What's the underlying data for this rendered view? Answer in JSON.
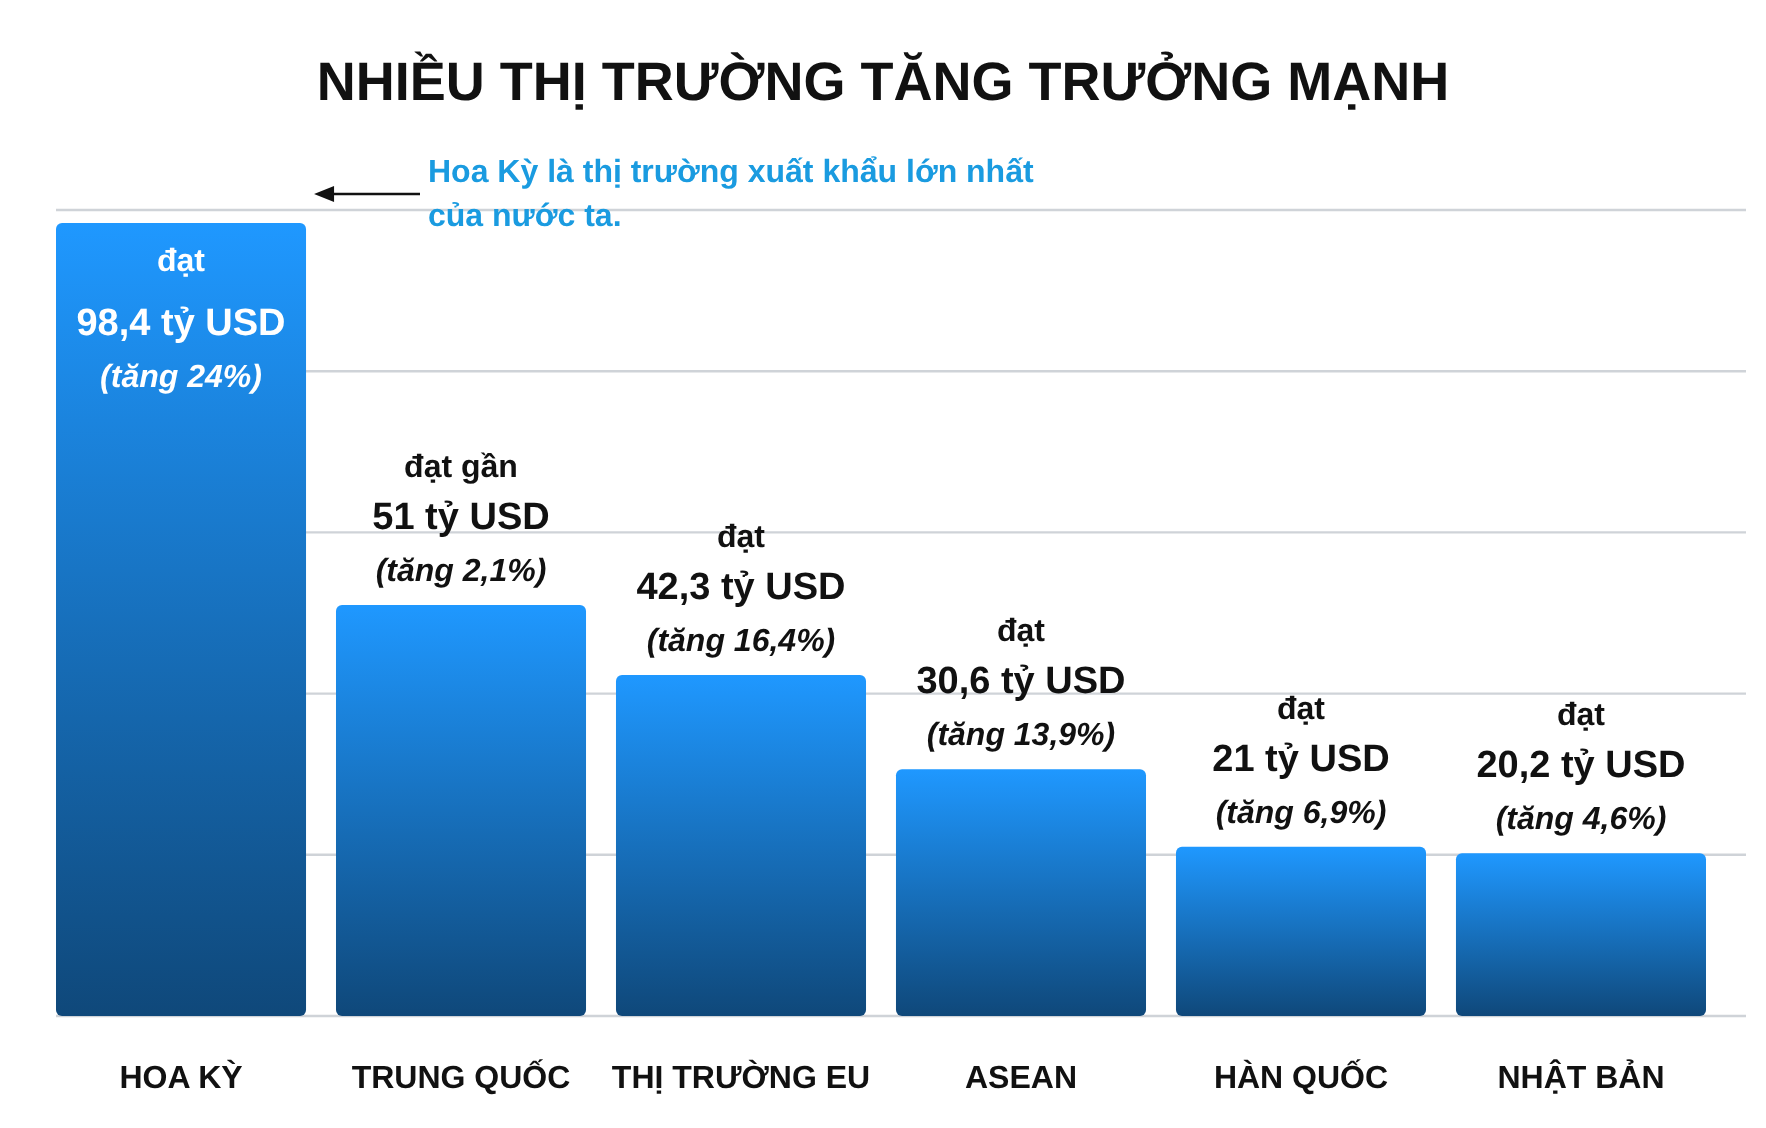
{
  "chart_data": {
    "type": "bar",
    "title": "NHIỀU THỊ TRƯỜNG TĂNG TRƯỞNG MẠNH",
    "categories": [
      "HOA KỲ",
      "TRUNG QUỐC",
      "THỊ TRƯỜNG EU",
      "ASEAN",
      "HÀN QUỐC",
      "NHẬT BẢN"
    ],
    "values": [
      98.4,
      51,
      42.3,
      30.6,
      21,
      20.2
    ],
    "color": "#1a7fd8",
    "value_labels": [
      "đạt\n98,4 tỷ USD\n(tăng 24%)",
      "đạt gần\n51 tỷ USD\n(tăng 2,1%)",
      "đạt\n42,3 tỷ USD\n(tăng 16,4%)",
      "đạt\n30,6 tỷ USD\n(tăng 13,9%)",
      "đạt\n21 tỷ USD\n(tăng 6,9%)",
      "đạt\n20,2 tỷ USD\n(tăng 4,6%)"
    ],
    "ylim": [
      0,
      100
    ],
    "yticks": [
      {
        "value": 0,
        "label": null
      },
      {
        "value": 20,
        "label": null
      },
      {
        "value": 40,
        "label": null
      },
      {
        "value": 60,
        "label": null
      },
      {
        "value": 80,
        "label": null
      },
      {
        "value": 100,
        "label": null
      }
    ],
    "grid": "y",
    "tick_labels": "x",
    "annotations": [
      "Hoa Kỳ là thị trường xuất khẩu lớn nhất của nước ta."
    ]
  }
}
